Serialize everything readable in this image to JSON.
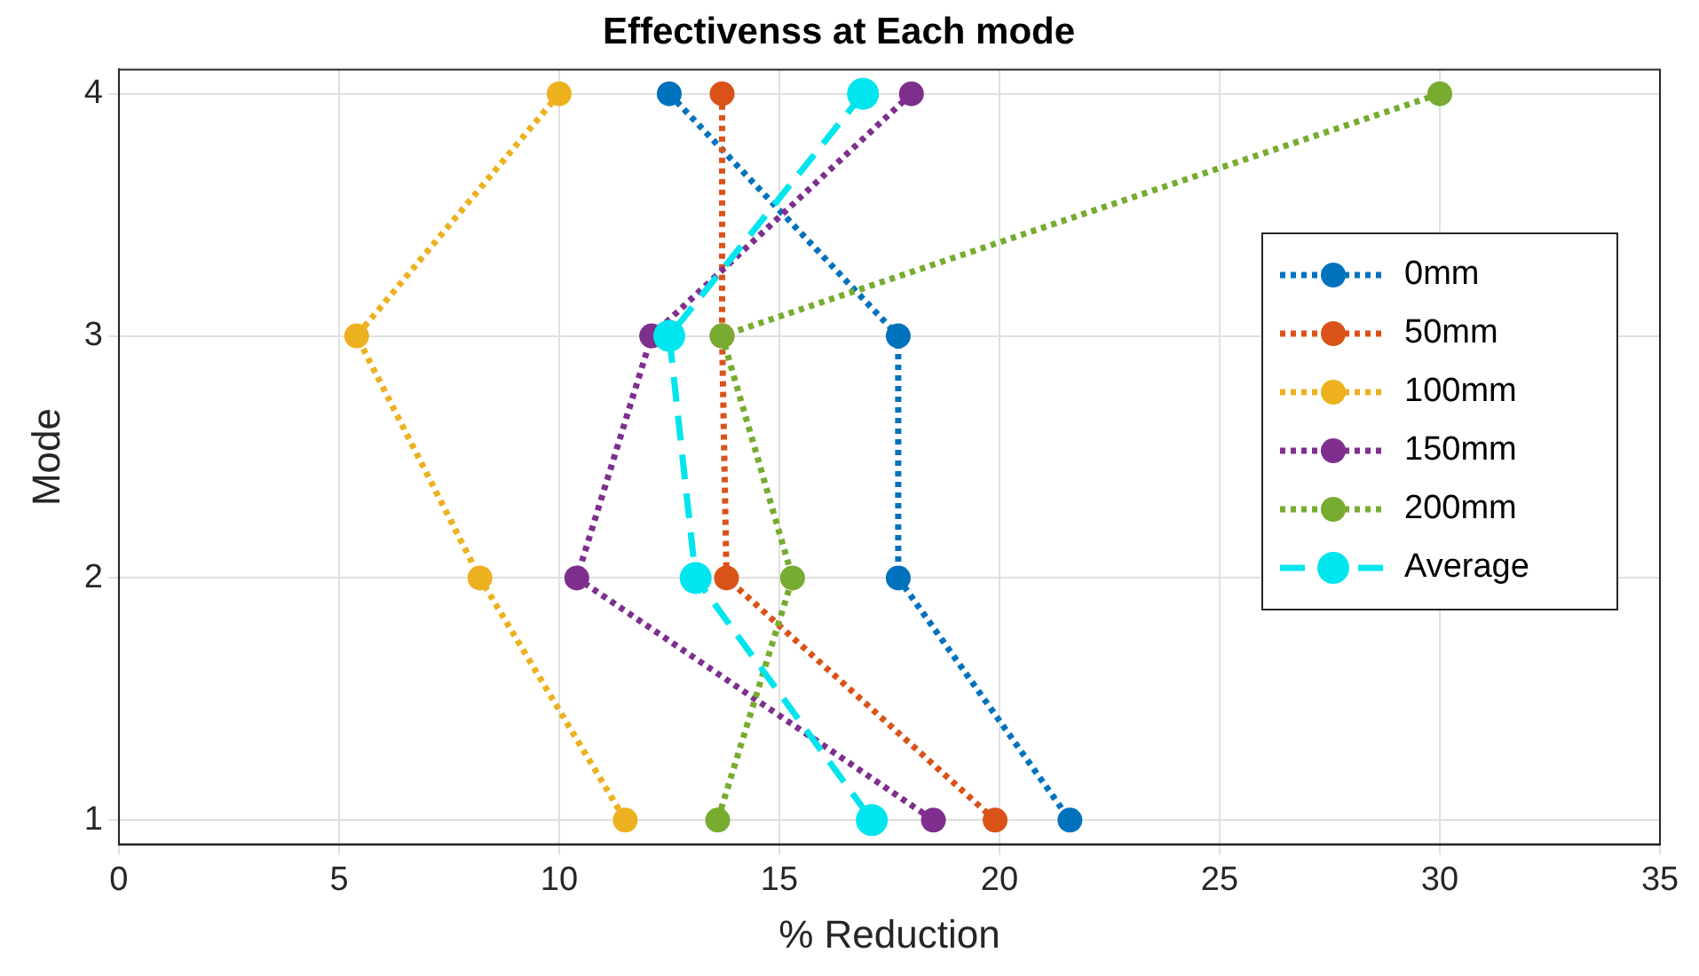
{
  "chart_data": {
    "type": "line",
    "title": "Effectivenss at Each mode",
    "xlabel": "% Reduction",
    "ylabel": "Mode",
    "xlim": [
      0,
      35
    ],
    "xticks": [
      0,
      5,
      10,
      15,
      20,
      25,
      30,
      35
    ],
    "ylim": [
      0.9,
      4.1
    ],
    "yticks": [
      1,
      2,
      3,
      4
    ],
    "grid": true,
    "legend": "right",
    "marker": "circle",
    "series": [
      {
        "name": "0mm",
        "color": "#0072bd",
        "line_style": "dotted",
        "x": [
          12.5,
          17.7,
          17.7,
          21.6
        ],
        "values": [
          4,
          3,
          2,
          1
        ]
      },
      {
        "name": "50mm",
        "color": "#d95319",
        "line_style": "dotted",
        "x": [
          13.7,
          13.7,
          13.8,
          19.9
        ],
        "values": [
          4,
          3,
          2,
          1
        ]
      },
      {
        "name": "100mm",
        "color": "#edb120",
        "line_style": "dotted",
        "x": [
          10,
          5.4,
          8.2,
          11.5
        ],
        "values": [
          4,
          3,
          2,
          1
        ]
      },
      {
        "name": "150mm",
        "color": "#7e2f8e",
        "line_style": "dotted",
        "x": [
          18,
          12.1,
          10.4,
          18.5
        ],
        "values": [
          4,
          3,
          2,
          1
        ]
      },
      {
        "name": "200mm",
        "color": "#77ac30",
        "line_style": "dotted",
        "x": [
          30,
          13.7,
          15.3,
          13.6
        ],
        "values": [
          4,
          3,
          2,
          1
        ]
      },
      {
        "name": "Average",
        "color": "#00e5ee",
        "line_style": "dashed",
        "x": [
          16.9,
          12.5,
          13.1,
          17.1
        ],
        "values": [
          4,
          3,
          2,
          1
        ]
      }
    ]
  }
}
